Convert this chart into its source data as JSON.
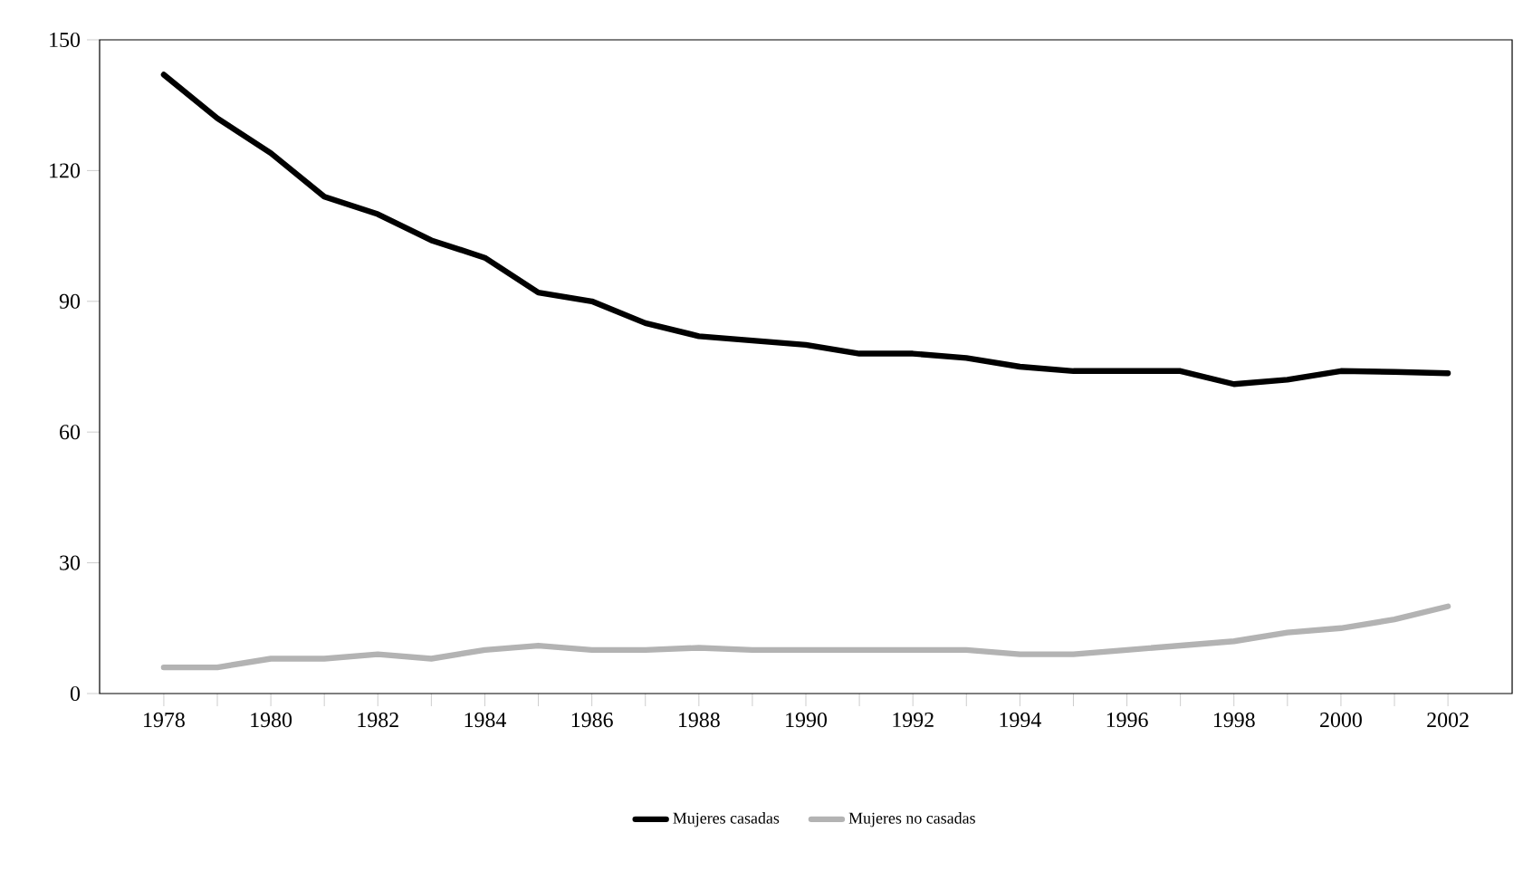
{
  "chart_data": {
    "type": "line",
    "x": [
      1978,
      1979,
      1980,
      1981,
      1982,
      1983,
      1984,
      1985,
      1986,
      1987,
      1988,
      1989,
      1990,
      1991,
      1992,
      1993,
      1994,
      1995,
      1996,
      1997,
      1998,
      1999,
      2000,
      2001,
      2002
    ],
    "series": [
      {
        "name": "Mujeres casadas",
        "color": "#000000",
        "values": [
          142,
          132,
          124,
          114,
          110,
          104,
          100,
          92,
          90,
          85,
          82,
          81,
          80,
          78,
          78,
          77,
          75,
          74,
          74,
          74,
          71,
          72,
          74,
          73.8,
          73.5
        ]
      },
      {
        "name": "Mujeres no casadas",
        "color": "#b3b3b3",
        "values": [
          6,
          6,
          8,
          8,
          9,
          8,
          10,
          11,
          10,
          10,
          10.5,
          10,
          10,
          10,
          10,
          10,
          9,
          9,
          10,
          11,
          12,
          14,
          15,
          17,
          20
        ]
      }
    ],
    "xlim": [
      1976.8,
      2003.2
    ],
    "xticks": [
      1978,
      {
        "value": 1979,
        "label": null
      },
      1980,
      {
        "value": 1981,
        "label": null
      },
      1982,
      {
        "value": 1983,
        "label": null
      },
      1984,
      {
        "value": 1985,
        "label": null
      },
      1986,
      {
        "value": 1987,
        "label": null
      },
      1988,
      {
        "value": 1989,
        "label": null
      },
      1990,
      {
        "value": 1991,
        "label": null
      },
      1992,
      {
        "value": 1993,
        "label": null
      },
      1994,
      {
        "value": 1995,
        "label": null
      },
      1996,
      {
        "value": 1997,
        "label": null
      },
      1998,
      {
        "value": 1999,
        "label": null
      },
      2000,
      {
        "value": 2001,
        "label": null
      },
      2002
    ],
    "ylim": [
      0,
      150
    ],
    "yticks": [
      0,
      30,
      60,
      90,
      120,
      150
    ],
    "legend": "bottom",
    "line_style": "solid",
    "marker": "none"
  }
}
